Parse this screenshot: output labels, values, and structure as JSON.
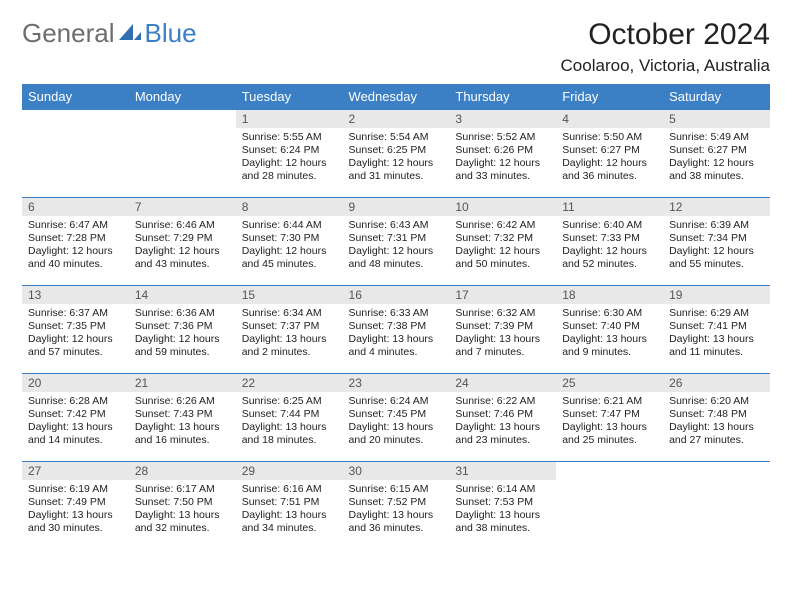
{
  "logo": {
    "text1": "General",
    "text2": "Blue"
  },
  "title": "October 2024",
  "location": "Coolaroo, Victoria, Australia",
  "colors": {
    "accent": "#3b7fc4",
    "header_bg": "#3b7fc4",
    "header_text": "#ffffff",
    "daynum_bg": "#e8e8e8",
    "row_border": "#3b7fc4",
    "logo_gray": "#6e6e6e",
    "body_text": "#222222"
  },
  "weekdays": [
    "Sunday",
    "Monday",
    "Tuesday",
    "Wednesday",
    "Thursday",
    "Friday",
    "Saturday"
  ],
  "weeks": [
    [
      {
        "n": "",
        "sr": "",
        "ss": "",
        "dl": ""
      },
      {
        "n": "",
        "sr": "",
        "ss": "",
        "dl": ""
      },
      {
        "n": "1",
        "sr": "Sunrise: 5:55 AM",
        "ss": "Sunset: 6:24 PM",
        "dl": "Daylight: 12 hours and 28 minutes."
      },
      {
        "n": "2",
        "sr": "Sunrise: 5:54 AM",
        "ss": "Sunset: 6:25 PM",
        "dl": "Daylight: 12 hours and 31 minutes."
      },
      {
        "n": "3",
        "sr": "Sunrise: 5:52 AM",
        "ss": "Sunset: 6:26 PM",
        "dl": "Daylight: 12 hours and 33 minutes."
      },
      {
        "n": "4",
        "sr": "Sunrise: 5:50 AM",
        "ss": "Sunset: 6:27 PM",
        "dl": "Daylight: 12 hours and 36 minutes."
      },
      {
        "n": "5",
        "sr": "Sunrise: 5:49 AM",
        "ss": "Sunset: 6:27 PM",
        "dl": "Daylight: 12 hours and 38 minutes."
      }
    ],
    [
      {
        "n": "6",
        "sr": "Sunrise: 6:47 AM",
        "ss": "Sunset: 7:28 PM",
        "dl": "Daylight: 12 hours and 40 minutes."
      },
      {
        "n": "7",
        "sr": "Sunrise: 6:46 AM",
        "ss": "Sunset: 7:29 PM",
        "dl": "Daylight: 12 hours and 43 minutes."
      },
      {
        "n": "8",
        "sr": "Sunrise: 6:44 AM",
        "ss": "Sunset: 7:30 PM",
        "dl": "Daylight: 12 hours and 45 minutes."
      },
      {
        "n": "9",
        "sr": "Sunrise: 6:43 AM",
        "ss": "Sunset: 7:31 PM",
        "dl": "Daylight: 12 hours and 48 minutes."
      },
      {
        "n": "10",
        "sr": "Sunrise: 6:42 AM",
        "ss": "Sunset: 7:32 PM",
        "dl": "Daylight: 12 hours and 50 minutes."
      },
      {
        "n": "11",
        "sr": "Sunrise: 6:40 AM",
        "ss": "Sunset: 7:33 PM",
        "dl": "Daylight: 12 hours and 52 minutes."
      },
      {
        "n": "12",
        "sr": "Sunrise: 6:39 AM",
        "ss": "Sunset: 7:34 PM",
        "dl": "Daylight: 12 hours and 55 minutes."
      }
    ],
    [
      {
        "n": "13",
        "sr": "Sunrise: 6:37 AM",
        "ss": "Sunset: 7:35 PM",
        "dl": "Daylight: 12 hours and 57 minutes."
      },
      {
        "n": "14",
        "sr": "Sunrise: 6:36 AM",
        "ss": "Sunset: 7:36 PM",
        "dl": "Daylight: 12 hours and 59 minutes."
      },
      {
        "n": "15",
        "sr": "Sunrise: 6:34 AM",
        "ss": "Sunset: 7:37 PM",
        "dl": "Daylight: 13 hours and 2 minutes."
      },
      {
        "n": "16",
        "sr": "Sunrise: 6:33 AM",
        "ss": "Sunset: 7:38 PM",
        "dl": "Daylight: 13 hours and 4 minutes."
      },
      {
        "n": "17",
        "sr": "Sunrise: 6:32 AM",
        "ss": "Sunset: 7:39 PM",
        "dl": "Daylight: 13 hours and 7 minutes."
      },
      {
        "n": "18",
        "sr": "Sunrise: 6:30 AM",
        "ss": "Sunset: 7:40 PM",
        "dl": "Daylight: 13 hours and 9 minutes."
      },
      {
        "n": "19",
        "sr": "Sunrise: 6:29 AM",
        "ss": "Sunset: 7:41 PM",
        "dl": "Daylight: 13 hours and 11 minutes."
      }
    ],
    [
      {
        "n": "20",
        "sr": "Sunrise: 6:28 AM",
        "ss": "Sunset: 7:42 PM",
        "dl": "Daylight: 13 hours and 14 minutes."
      },
      {
        "n": "21",
        "sr": "Sunrise: 6:26 AM",
        "ss": "Sunset: 7:43 PM",
        "dl": "Daylight: 13 hours and 16 minutes."
      },
      {
        "n": "22",
        "sr": "Sunrise: 6:25 AM",
        "ss": "Sunset: 7:44 PM",
        "dl": "Daylight: 13 hours and 18 minutes."
      },
      {
        "n": "23",
        "sr": "Sunrise: 6:24 AM",
        "ss": "Sunset: 7:45 PM",
        "dl": "Daylight: 13 hours and 20 minutes."
      },
      {
        "n": "24",
        "sr": "Sunrise: 6:22 AM",
        "ss": "Sunset: 7:46 PM",
        "dl": "Daylight: 13 hours and 23 minutes."
      },
      {
        "n": "25",
        "sr": "Sunrise: 6:21 AM",
        "ss": "Sunset: 7:47 PM",
        "dl": "Daylight: 13 hours and 25 minutes."
      },
      {
        "n": "26",
        "sr": "Sunrise: 6:20 AM",
        "ss": "Sunset: 7:48 PM",
        "dl": "Daylight: 13 hours and 27 minutes."
      }
    ],
    [
      {
        "n": "27",
        "sr": "Sunrise: 6:19 AM",
        "ss": "Sunset: 7:49 PM",
        "dl": "Daylight: 13 hours and 30 minutes."
      },
      {
        "n": "28",
        "sr": "Sunrise: 6:17 AM",
        "ss": "Sunset: 7:50 PM",
        "dl": "Daylight: 13 hours and 32 minutes."
      },
      {
        "n": "29",
        "sr": "Sunrise: 6:16 AM",
        "ss": "Sunset: 7:51 PM",
        "dl": "Daylight: 13 hours and 34 minutes."
      },
      {
        "n": "30",
        "sr": "Sunrise: 6:15 AM",
        "ss": "Sunset: 7:52 PM",
        "dl": "Daylight: 13 hours and 36 minutes."
      },
      {
        "n": "31",
        "sr": "Sunrise: 6:14 AM",
        "ss": "Sunset: 7:53 PM",
        "dl": "Daylight: 13 hours and 38 minutes."
      },
      {
        "n": "",
        "sr": "",
        "ss": "",
        "dl": ""
      },
      {
        "n": "",
        "sr": "",
        "ss": "",
        "dl": ""
      }
    ]
  ]
}
